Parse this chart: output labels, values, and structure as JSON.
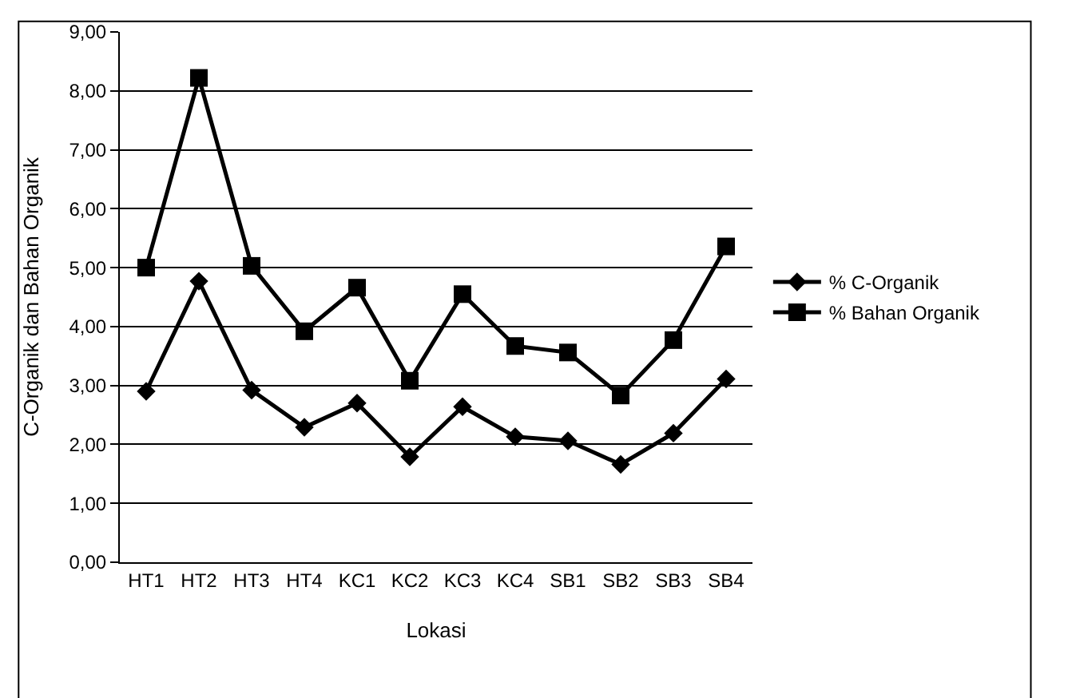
{
  "chart_data": {
    "type": "line",
    "xlabel": "Lokasi",
    "ylabel": "C-Organik dan Bahan Organik",
    "categories": [
      "HT1",
      "HT2",
      "HT3",
      "HT4",
      "KC1",
      "KC2",
      "KC3",
      "KC4",
      "SB1",
      "SB2",
      "SB3",
      "SB4"
    ],
    "series": [
      {
        "name": "% C-Organik",
        "color": "#000000",
        "marker": "diamond",
        "values": [
          2.9,
          4.77,
          2.92,
          2.29,
          2.7,
          1.79,
          2.64,
          2.13,
          2.06,
          1.66,
          2.19,
          3.11
        ]
      },
      {
        "name": "% Bahan Organik",
        "color": "#000000",
        "marker": "square",
        "values": [
          5.0,
          8.22,
          5.03,
          3.92,
          4.66,
          3.08,
          4.55,
          3.67,
          3.56,
          2.83,
          3.77,
          5.36
        ]
      }
    ],
    "ylim": [
      0,
      9
    ],
    "yticks": [
      {
        "value": 0,
        "label": "0,00"
      },
      {
        "value": 1,
        "label": "1,00"
      },
      {
        "value": 2,
        "label": "2,00"
      },
      {
        "value": 3,
        "label": "3,00"
      },
      {
        "value": 4,
        "label": "4,00"
      },
      {
        "value": 5,
        "label": "5,00"
      },
      {
        "value": 6,
        "label": "6,00"
      },
      {
        "value": 7,
        "label": "7,00"
      },
      {
        "value": 8,
        "label": "8,00"
      },
      {
        "value": 9,
        "label": "9,00"
      }
    ],
    "grid": "y",
    "legend": "right"
  }
}
